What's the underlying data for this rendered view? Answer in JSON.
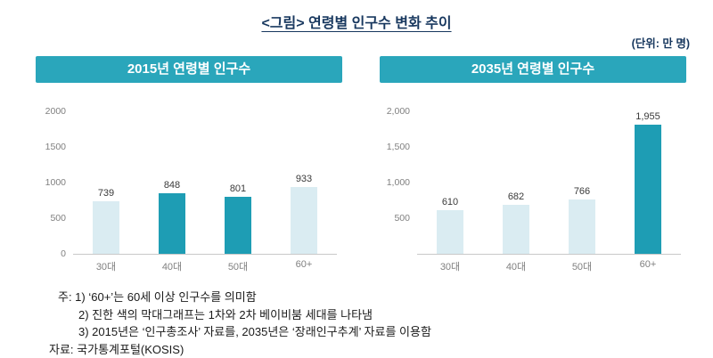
{
  "page": {
    "title": "<그림> 연령별 인구수 변화 추이",
    "unit_label": "(단위: 만 명)"
  },
  "colors": {
    "accent_teal": "#2aa6bb",
    "bar_light": "#daecf2",
    "bar_dark": "#1e9db4",
    "title_navy": "#17375e"
  },
  "chart_data": [
    {
      "type": "bar",
      "title": "2015년 연령별 인구수",
      "categories": [
        "30대",
        "40대",
        "50대",
        "60+"
      ],
      "values": [
        739,
        848,
        801,
        933
      ],
      "value_labels": [
        "739",
        "848",
        "801",
        "933"
      ],
      "emphasis": [
        false,
        true,
        true,
        false
      ],
      "ylim": [
        0,
        2000
      ],
      "yticks": [
        {
          "label": "2000",
          "value": 2000
        },
        {
          "label": "1500",
          "value": 1500
        },
        {
          "label": "1000",
          "value": 1000
        },
        {
          "label": "500",
          "value": 500
        },
        {
          "label": "0",
          "value": 0
        }
      ],
      "grid": false,
      "legend": "none"
    },
    {
      "type": "bar",
      "title": "2035년 연령별 인구수",
      "categories": [
        "30대",
        "40대",
        "50대",
        "60+"
      ],
      "values": [
        610,
        682,
        766,
        1955
      ],
      "value_labels": [
        "610",
        "682",
        "766",
        "1,955"
      ],
      "emphasis": [
        false,
        false,
        false,
        true
      ],
      "ylim": [
        0,
        2000
      ],
      "yticks": [
        {
          "label": "2,000",
          "value": 2000
        },
        {
          "label": "1,500",
          "value": 1500
        },
        {
          "label": "1,000",
          "value": 1000
        },
        {
          "label": "500",
          "value": 500
        }
      ],
      "grid": false,
      "legend": "none"
    }
  ],
  "notes": [
    "주: 1) ‘60+’는 60세 이상 인구수를 의미함",
    "2) 진한 색의 막대그래프는 1차와 2차 베이비붐 세대를 나타냄",
    "3) 2015년은 ‘인구총조사’ 자료를, 2035년은 ‘장래인구추계’ 자료를 이용함",
    "자료: 국가통계포털(KOSIS)"
  ]
}
